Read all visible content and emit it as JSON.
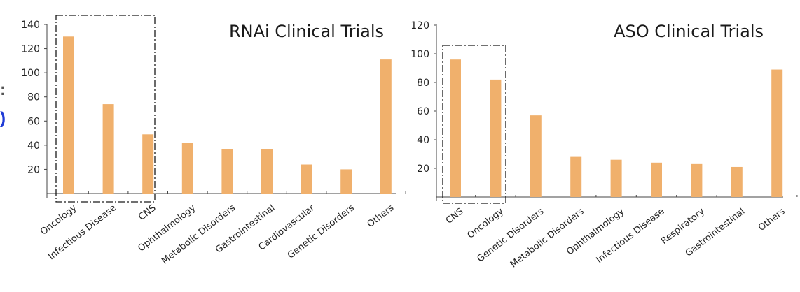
{
  "bar_color": "#f0b06c",
  "cut_text": {
    "colon": ":",
    "paren": ")"
  },
  "chart_data": [
    {
      "type": "bar",
      "title": "RNAi Clinical Trials",
      "categories": [
        "Oncology",
        "Infectious Disease",
        "CNS",
        "Ophthalmology",
        "Metabolic Disorders",
        "Gastrointestinal",
        "Cardiovascular",
        "Genetic Disorders",
        "Others"
      ],
      "values": [
        130,
        74,
        49,
        42,
        37,
        37,
        24,
        20,
        111
      ],
      "yticks": [
        20,
        40,
        60,
        80,
        100,
        120,
        140
      ],
      "ylim": [
        0,
        140
      ],
      "xlabel": "",
      "ylabel": "",
      "grid": false,
      "highlight_box": [
        "Oncology",
        "Infectious Disease",
        "CNS"
      ]
    },
    {
      "type": "bar",
      "title": "ASO Clinical Trials",
      "categories": [
        "CNS",
        "Oncology",
        "Genetic Disorders",
        "Metabolic Disorders",
        "Ophthalmology",
        "Infectious Disease",
        "Respiratory",
        "Gastrointestinal",
        "Others"
      ],
      "values": [
        96,
        82,
        57,
        28,
        26,
        24,
        23,
        21,
        89
      ],
      "yticks": [
        20,
        40,
        60,
        80,
        100,
        120
      ],
      "ylim": [
        0,
        120
      ],
      "xlabel": "",
      "ylabel": "",
      "grid": false,
      "highlight_box": [
        "CNS",
        "Oncology"
      ]
    }
  ]
}
